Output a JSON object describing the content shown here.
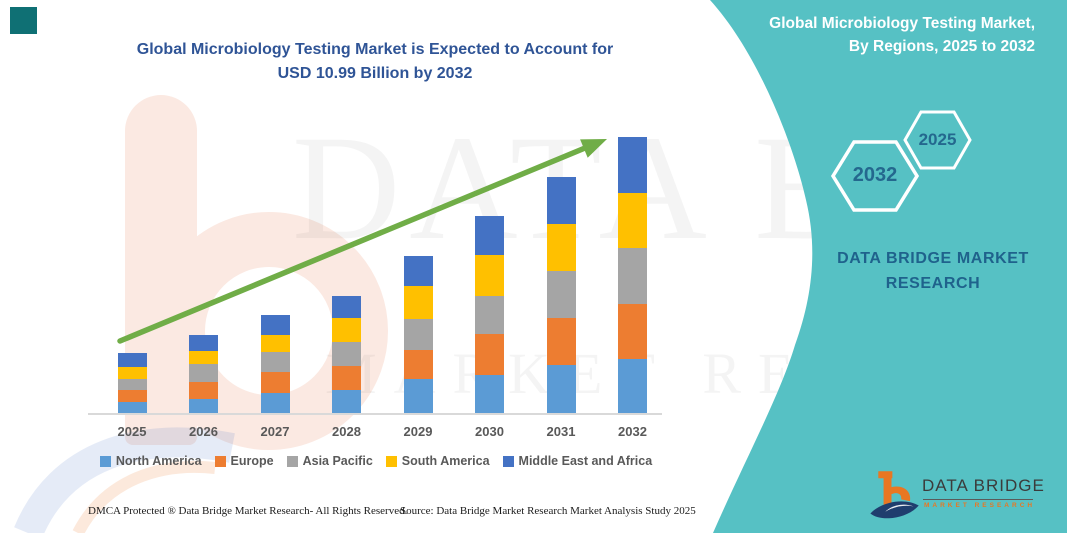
{
  "header": {
    "title_line1": "Global Microbiology Testing Market is Expected to Account for",
    "title_line2": "USD 10.99 Billion by 2032"
  },
  "side_panel": {
    "title_line1": "Global Microbiology Testing Market,",
    "title_line2": "By Regions, 2025 to 2032",
    "hexagons": [
      {
        "label": "2032"
      },
      {
        "label": "2025"
      }
    ],
    "brand_line1": "DATA BRIDGE MARKET",
    "brand_line2": "RESEARCH",
    "bg_color": "#56C1C4"
  },
  "chart_data": {
    "type": "bar",
    "stacked": true,
    "title": "Global Microbiology Testing Market is Expected to Account for USD 10.99 Billion by 2032",
    "categories": [
      "2025",
      "2026",
      "2027",
      "2028",
      "2029",
      "2030",
      "2031",
      "2032"
    ],
    "series": [
      {
        "name": "North America",
        "color": "#5B9BD5",
        "values": [
          0.46,
          0.56,
          0.81,
          0.9,
          1.37,
          1.53,
          1.91,
          2.15
        ]
      },
      {
        "name": "Europe",
        "color": "#ED7D31",
        "values": [
          0.47,
          0.66,
          0.82,
          0.99,
          1.13,
          1.63,
          1.89,
          2.19
        ]
      },
      {
        "name": "Asia Pacific",
        "color": "#A5A5A5",
        "values": [
          0.44,
          0.73,
          0.8,
          0.93,
          1.23,
          1.52,
          1.86,
          2.25
        ]
      },
      {
        "name": "South America",
        "color": "#FFC000",
        "values": [
          0.46,
          0.53,
          0.66,
          0.99,
          1.32,
          1.62,
          1.86,
          2.19
        ]
      },
      {
        "name": "Middle East and Africa",
        "color": "#4472C4",
        "values": [
          0.56,
          0.61,
          0.8,
          0.86,
          1.19,
          1.56,
          1.88,
          2.22
        ]
      }
    ],
    "totals": [
      2.39,
      3.09,
      3.89,
      4.67,
      6.24,
      7.86,
      9.4,
      10.99
    ],
    "units": "USD Billion",
    "xlabel": "",
    "ylabel": "",
    "ylim": [
      0,
      11
    ],
    "grid": false,
    "legend_position": "bottom",
    "annotation": "USD 10.99 Billion by 2032",
    "trend_arrow_color": "#70AD47",
    "note": "No y-axis shown; segment values estimated from bar heights with 2032 total anchored at USD 10.99 Billion."
  },
  "watermark": {
    "big": "DATA BRIDGE",
    "spaced": "MARKET RESEARCH"
  },
  "logo": {
    "name_top": "DATA BRIDGE",
    "name_bottom": "MARKET RESEARCH"
  },
  "footer": {
    "left": "DMCA Protected ® Data Bridge Market Research-  All Rights Reserved.",
    "source": "Source: Data Bridge Market Research  Market Analysis Study 2025"
  },
  "colors": {
    "teal": "#56C1C4",
    "corner_teal": "#0F7074",
    "title_blue": "#2F5496",
    "arrow_green": "#70AD47",
    "axis_gray": "#D9D9D9",
    "label_gray": "#595959",
    "brand_blue": "#1F628C",
    "hex_number_blue": "#24688E",
    "logo_orange": "#E87722",
    "logo_navy": "#1F3E6E",
    "logo_text": "#3B3B3B"
  }
}
